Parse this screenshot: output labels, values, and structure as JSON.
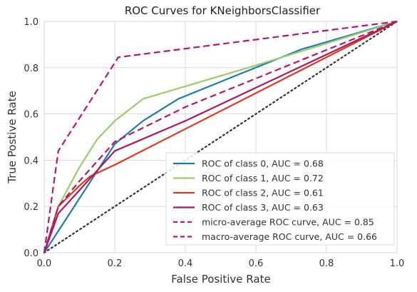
{
  "chart_data": {
    "type": "line",
    "title": "ROC Curves for KNeighborsClassifier",
    "xlabel": "False Positive Rate",
    "ylabel": "True Postive Rate",
    "xlim": [
      0.0,
      1.0
    ],
    "ylim": [
      0.0,
      1.0
    ],
    "x_ticks": [
      "0.0",
      "0.2",
      "0.4",
      "0.6",
      "0.8",
      "1.0"
    ],
    "y_ticks": [
      "0.0",
      "0.2",
      "0.4",
      "0.6",
      "0.8",
      "1.0"
    ],
    "grid": true,
    "legend_position": "lower-right",
    "series": [
      {
        "name": "ROC of class 0, AUC = 0.68",
        "color": "#1f7ab4",
        "style": "solid",
        "x": [
          0.0,
          0.2,
          0.28,
          0.38,
          0.55,
          0.73,
          1.0
        ],
        "y": [
          0.0,
          0.47,
          0.57,
          0.665,
          0.77,
          0.88,
          1.0
        ]
      },
      {
        "name": "ROC of class 1, AUC = 0.72",
        "color": "#9ccc6c",
        "style": "solid",
        "x": [
          0.0,
          0.04,
          0.1,
          0.15,
          0.2,
          0.28,
          0.6,
          1.0
        ],
        "y": [
          0.0,
          0.2,
          0.37,
          0.49,
          0.57,
          0.665,
          0.81,
          1.0
        ]
      },
      {
        "name": "ROC of class 2, AUC = 0.61",
        "color": "#dc3a1c",
        "style": "solid",
        "x": [
          0.0,
          0.04,
          0.1,
          0.13,
          0.2,
          1.0
        ],
        "y": [
          0.0,
          0.2,
          0.29,
          0.33,
          0.38,
          1.0
        ]
      },
      {
        "name": "ROC of class 3, AUC = 0.63",
        "color": "#a61b61",
        "style": "solid",
        "x": [
          0.0,
          0.04,
          0.1,
          0.2,
          0.4,
          1.0
        ],
        "y": [
          0.0,
          0.17,
          0.27,
          0.44,
          0.57,
          1.0
        ]
      },
      {
        "name": "micro-average ROC curve, AUC = 0.85",
        "color": "#b3186e",
        "style": "dashed",
        "x": [
          0.0,
          0.04,
          0.21,
          1.0
        ],
        "y": [
          0.0,
          0.44,
          0.845,
          1.0
        ]
      },
      {
        "name": "macro-average ROC curve, AUC = 0.66",
        "color": "#b3186e",
        "style": "dashed",
        "x": [
          0.0,
          0.04,
          0.1,
          0.2,
          0.4,
          1.0
        ],
        "y": [
          0.0,
          0.2,
          0.31,
          0.48,
          0.63,
          1.0
        ]
      },
      {
        "name": "",
        "color": "#333333",
        "style": "dotted",
        "x": [
          0.0,
          1.0
        ],
        "y": [
          0.0,
          1.0
        ]
      }
    ]
  }
}
